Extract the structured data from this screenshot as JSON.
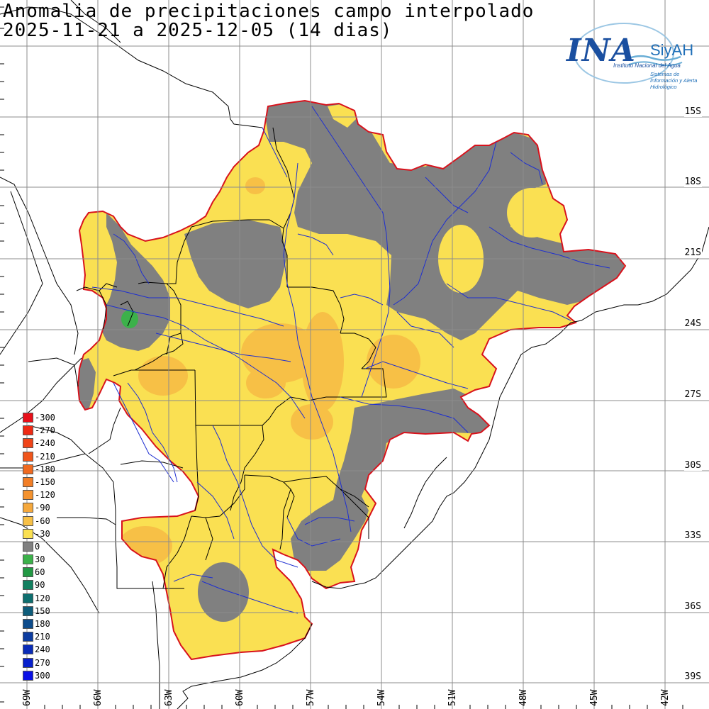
{
  "title": {
    "line1": "Anomalia de precipitaciones campo interpolado",
    "line2": "2025-11-21 a 2025-12-05 (14 dias)"
  },
  "logo": {
    "brand": "INA",
    "product": "SiyAH",
    "subtitle_institute": "Instituto Nacional del Agua",
    "subtitle_system": "Sistemas de Información y Alerta Hidrológico"
  },
  "axes": {
    "latitudes": [
      "15S",
      "18S",
      "21S",
      "24S",
      "27S",
      "30S",
      "33S",
      "36S",
      "39S"
    ],
    "longitudes": [
      "69W",
      "66W",
      "63W",
      "60W",
      "57W",
      "54W",
      "51W",
      "48W",
      "45W",
      "42W"
    ]
  },
  "legend": {
    "items": [
      {
        "label": "-300",
        "color": "#e8101a"
      },
      {
        "label": "-270",
        "color": "#ee2a14"
      },
      {
        "label": "-240",
        "color": "#f04418"
      },
      {
        "label": "-210",
        "color": "#f0561c"
      },
      {
        "label": "-180",
        "color": "#f06a20"
      },
      {
        "label": "-150",
        "color": "#f27e26"
      },
      {
        "label": "-120",
        "color": "#f4922e"
      },
      {
        "label": "-90",
        "color": "#f5a83c"
      },
      {
        "label": "-60",
        "color": "#f7c046"
      },
      {
        "label": "-30",
        "color": "#fae052"
      },
      {
        "label": "0",
        "color": "#808080"
      },
      {
        "label": "30",
        "color": "#3cb14a"
      },
      {
        "label": "60",
        "color": "#229944"
      },
      {
        "label": "90",
        "color": "#128060"
      },
      {
        "label": "120",
        "color": "#0e6e6e"
      },
      {
        "label": "150",
        "color": "#0e5c7a"
      },
      {
        "label": "180",
        "color": "#0e4c8c"
      },
      {
        "label": "210",
        "color": "#0c3ca0"
      },
      {
        "label": "240",
        "color": "#0a2cb8"
      },
      {
        "label": "270",
        "color": "#0820cc"
      },
      {
        "label": "300",
        "color": "#0a10e6"
      }
    ]
  },
  "colors": {
    "basin_outline": "#d8121c",
    "grid": "#8c8c8c",
    "rivers": "#1d2ed1",
    "borders": "#000000",
    "anomaly_0": "#808080",
    "anomaly_m30": "#fae052",
    "anomaly_m60": "#f7c046",
    "anomaly_m90": "#f5a83c",
    "anomaly_p30": "#3cb14a"
  }
}
